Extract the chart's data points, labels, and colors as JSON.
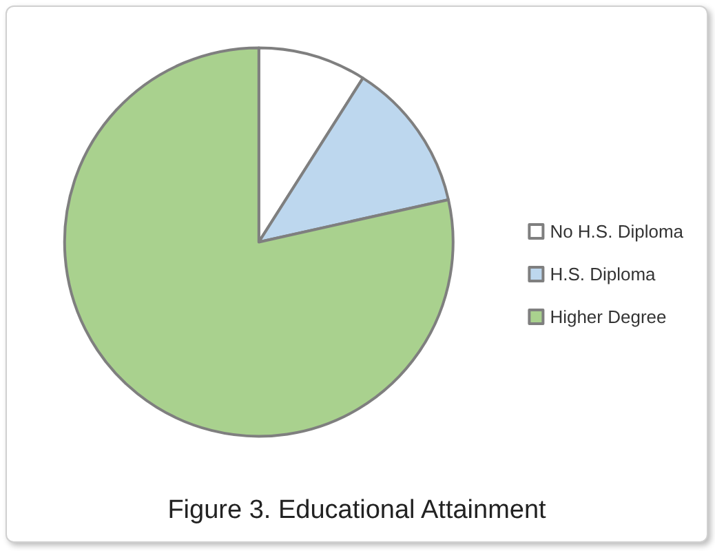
{
  "chart_data": {
    "type": "pie",
    "title": "Figure 3. Educational Attainment",
    "categories": [
      "No H.S. Diploma",
      "H.S. Diploma",
      "Higher Degree"
    ],
    "values": [
      9,
      12.5,
      78.5
    ],
    "colors": [
      "#ffffff",
      "#bdd7ee",
      "#a9d18e"
    ],
    "legend": "right"
  }
}
